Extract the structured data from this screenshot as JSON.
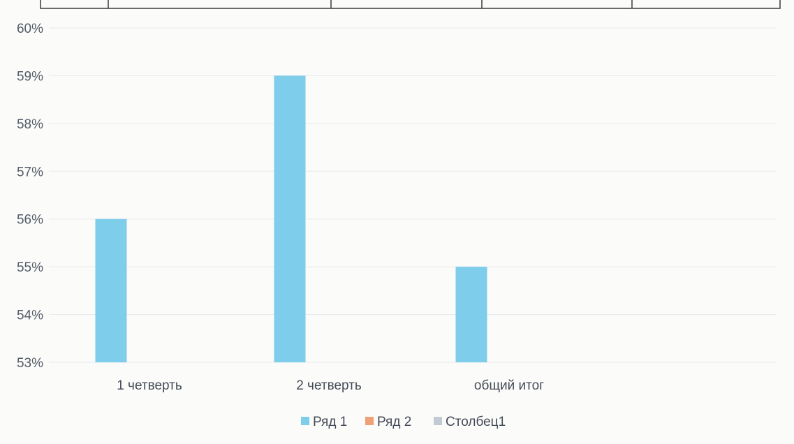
{
  "chart_data": {
    "type": "bar",
    "title": "",
    "xlabel": "",
    "ylabel": "",
    "categories": [
      "1 четверть",
      "2 четверть",
      "общий итог"
    ],
    "series": [
      {
        "name": "Ряд 1",
        "color": "#7dcdeb",
        "values": [
          56,
          59,
          55
        ]
      },
      {
        "name": "Ряд 2",
        "color": "#f0a075",
        "values": [
          null,
          null,
          null
        ]
      },
      {
        "name": "Столбец1",
        "color": "#c2cad3",
        "values": [
          null,
          null,
          null
        ]
      }
    ],
    "ylim": [
      53,
      60
    ],
    "yticks": [
      "53%",
      "54%",
      "55%",
      "56%",
      "57%",
      "58%",
      "59%",
      "60%"
    ],
    "grid": true,
    "legend": "bottom"
  }
}
